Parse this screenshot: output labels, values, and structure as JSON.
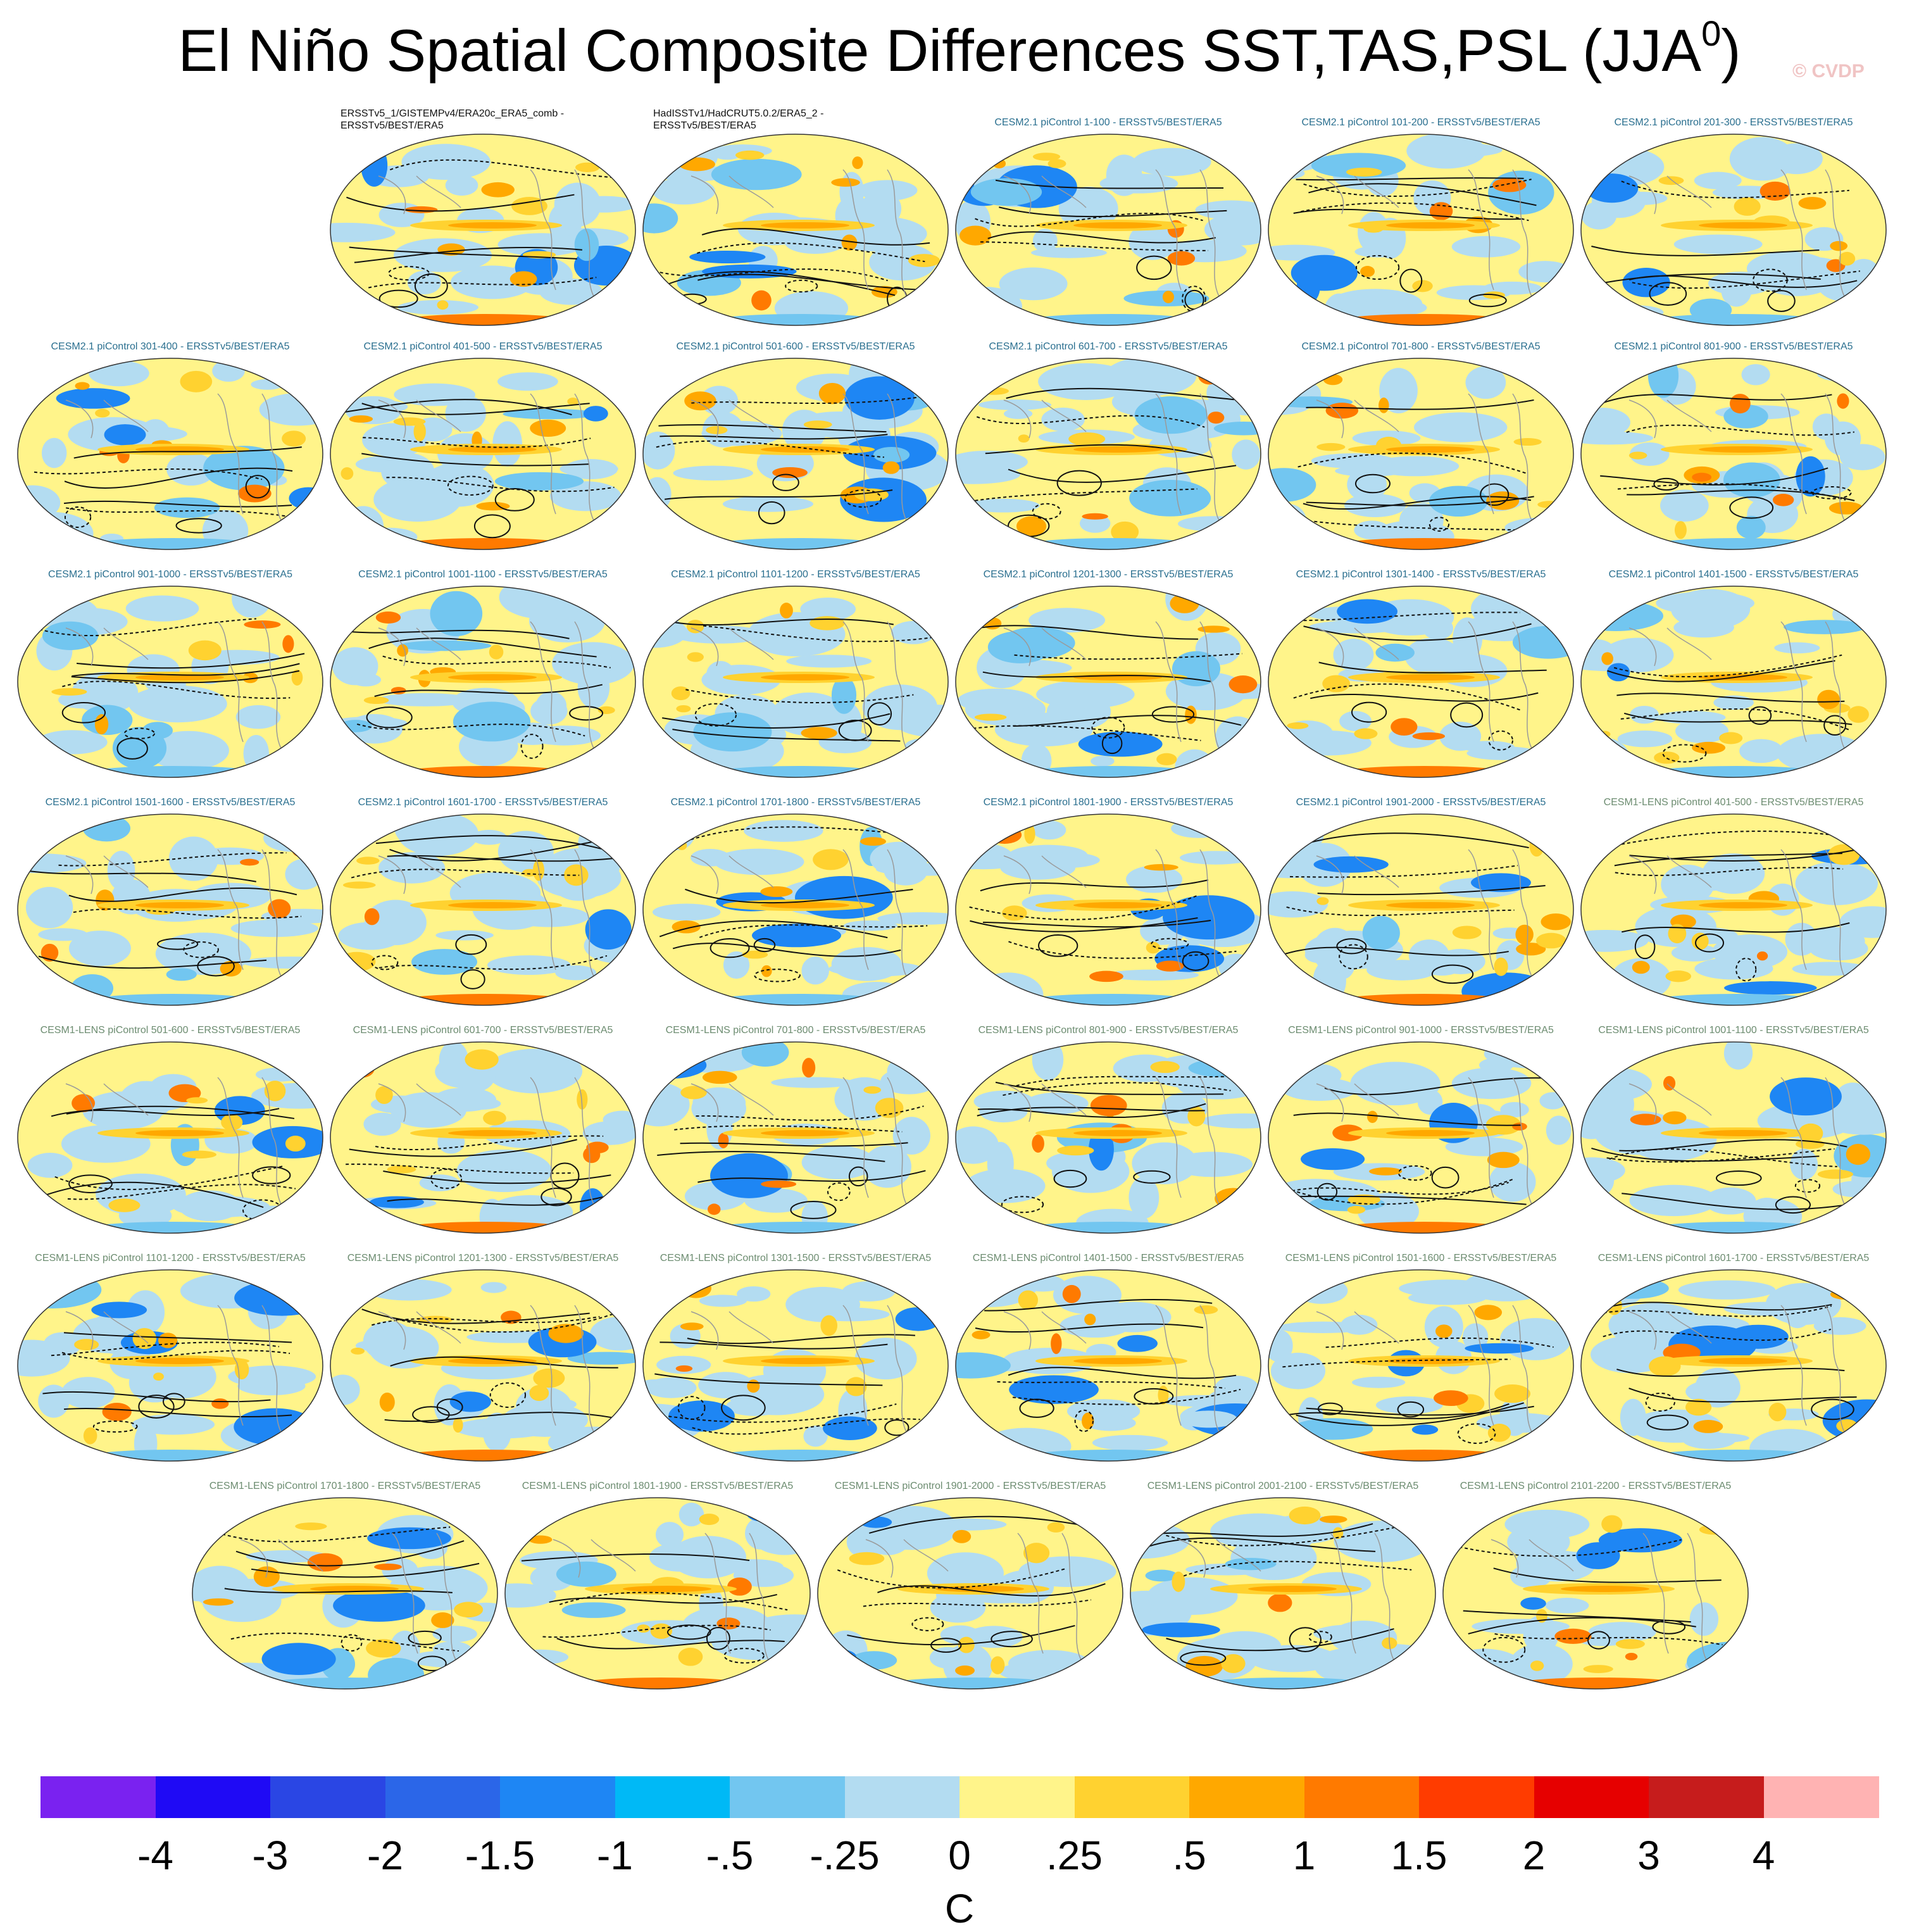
{
  "title_main": "El Niño Spatial Composite Differences SST,TAS,PSL (JJA",
  "title_sup": "0",
  "title_close": ")",
  "watermark": "© CVDP",
  "chart_data": {
    "type": "map-panel-grid",
    "title": "El Niño Spatial Composite Differences SST,TAS,PSL (JJA0)",
    "variables": [
      "SST",
      "TAS",
      "PSL"
    ],
    "season": "JJA0",
    "unit": "C",
    "colorbar": {
      "levels": [
        "-4",
        "-3",
        "-2",
        "-1.5",
        "-1",
        "-.5",
        "-.25",
        "0",
        ".25",
        ".5",
        "1",
        "1.5",
        "2",
        "3",
        "4"
      ],
      "colors": [
        "#7a22f0",
        "#1f0af5",
        "#2a46e4",
        "#2b66e8",
        "#1e86f4",
        "#00b9f6",
        "#72c6f0",
        "#b3dcf1",
        "#fff48a",
        "#ffd230",
        "#ffa800",
        "#ff7a00",
        "#ff3c00",
        "#e60000",
        "#c61c1c",
        "#ffb3b3"
      ]
    },
    "panels": [
      {
        "label": "ERSSTv5_1/GISTEMPv4/ERA20c_ERA5_comb -",
        "label2": "ERSSTv5/BEST/ERA5",
        "group": "obs"
      },
      {
        "label": "HadISSTv1/HadCRUT5.0.2/ERA5_2 -",
        "label2": "ERSSTv5/BEST/ERA5",
        "group": "obs"
      },
      {
        "label": "CESM2.1 piControl 1-100 - ERSSTv5/BEST/ERA5",
        "group": "cesm2"
      },
      {
        "label": "CESM2.1 piControl 101-200 - ERSSTv5/BEST/ERA5",
        "group": "cesm2"
      },
      {
        "label": "CESM2.1 piControl 201-300 - ERSSTv5/BEST/ERA5",
        "group": "cesm2"
      },
      {
        "label": "CESM2.1 piControl 301-400 - ERSSTv5/BEST/ERA5",
        "group": "cesm2"
      },
      {
        "label": "CESM2.1 piControl 401-500 - ERSSTv5/BEST/ERA5",
        "group": "cesm2"
      },
      {
        "label": "CESM2.1 piControl 501-600 - ERSSTv5/BEST/ERA5",
        "group": "cesm2"
      },
      {
        "label": "CESM2.1 piControl 601-700 - ERSSTv5/BEST/ERA5",
        "group": "cesm2"
      },
      {
        "label": "CESM2.1 piControl 701-800 - ERSSTv5/BEST/ERA5",
        "group": "cesm2"
      },
      {
        "label": "CESM2.1 piControl 801-900 - ERSSTv5/BEST/ERA5",
        "group": "cesm2"
      },
      {
        "label": "CESM2.1 piControl 901-1000 - ERSSTv5/BEST/ERA5",
        "group": "cesm2"
      },
      {
        "label": "CESM2.1 piControl 1001-1100 - ERSSTv5/BEST/ERA5",
        "group": "cesm2"
      },
      {
        "label": "CESM2.1 piControl 1101-1200 - ERSSTv5/BEST/ERA5",
        "group": "cesm2"
      },
      {
        "label": "CESM2.1 piControl 1201-1300 - ERSSTv5/BEST/ERA5",
        "group": "cesm2"
      },
      {
        "label": "CESM2.1 piControl 1301-1400 - ERSSTv5/BEST/ERA5",
        "group": "cesm2"
      },
      {
        "label": "CESM2.1 piControl 1401-1500 - ERSSTv5/BEST/ERA5",
        "group": "cesm2"
      },
      {
        "label": "CESM2.1 piControl 1501-1600 - ERSSTv5/BEST/ERA5",
        "group": "cesm2"
      },
      {
        "label": "CESM2.1 piControl 1601-1700 - ERSSTv5/BEST/ERA5",
        "group": "cesm2"
      },
      {
        "label": "CESM2.1 piControl 1701-1800 - ERSSTv5/BEST/ERA5",
        "group": "cesm2"
      },
      {
        "label": "CESM2.1 piControl 1801-1900 - ERSSTv5/BEST/ERA5",
        "group": "cesm2"
      },
      {
        "label": "CESM2.1 piControl 1901-2000 - ERSSTv5/BEST/ERA5",
        "group": "cesm2"
      },
      {
        "label": "CESM1-LENS piControl 401-500 - ERSSTv5/BEST/ERA5",
        "group": "cesm1"
      },
      {
        "label": "CESM1-LENS piControl 501-600 - ERSSTv5/BEST/ERA5",
        "group": "cesm1"
      },
      {
        "label": "CESM1-LENS piControl 601-700 - ERSSTv5/BEST/ERA5",
        "group": "cesm1"
      },
      {
        "label": "CESM1-LENS piControl 701-800 - ERSSTv5/BEST/ERA5",
        "group": "cesm1"
      },
      {
        "label": "CESM1-LENS piControl 801-900 - ERSSTv5/BEST/ERA5",
        "group": "cesm1"
      },
      {
        "label": "CESM1-LENS piControl 901-1000 - ERSSTv5/BEST/ERA5",
        "group": "cesm1"
      },
      {
        "label": "CESM1-LENS piControl 1001-1100 - ERSSTv5/BEST/ERA5",
        "group": "cesm1"
      },
      {
        "label": "CESM1-LENS piControl 1101-1200 - ERSSTv5/BEST/ERA5",
        "group": "cesm1"
      },
      {
        "label": "CESM1-LENS piControl 1201-1300 - ERSSTv5/BEST/ERA5",
        "group": "cesm1"
      },
      {
        "label": "CESM1-LENS piControl 1301-1500 - ERSSTv5/BEST/ERA5",
        "group": "cesm1"
      },
      {
        "label": "CESM1-LENS piControl 1401-1500 - ERSSTv5/BEST/ERA5",
        "group": "cesm1"
      },
      {
        "label": "CESM1-LENS piControl 1501-1600 - ERSSTv5/BEST/ERA5",
        "group": "cesm1"
      },
      {
        "label": "CESM1-LENS piControl 1601-1700 - ERSSTv5/BEST/ERA5",
        "group": "cesm1"
      },
      {
        "label": "CESM1-LENS piControl 1701-1800 - ERSSTv5/BEST/ERA5",
        "group": "cesm1"
      },
      {
        "label": "CESM1-LENS piControl 1801-1900 - ERSSTv5/BEST/ERA5",
        "group": "cesm1"
      },
      {
        "label": "CESM1-LENS piControl 1901-2000 - ERSSTv5/BEST/ERA5",
        "group": "cesm1"
      },
      {
        "label": "CESM1-LENS piControl 2001-2100 - ERSSTv5/BEST/ERA5",
        "group": "cesm1"
      },
      {
        "label": "CESM1-LENS piControl 2101-2200 - ERSSTv5/BEST/ERA5",
        "group": "cesm1"
      }
    ]
  }
}
